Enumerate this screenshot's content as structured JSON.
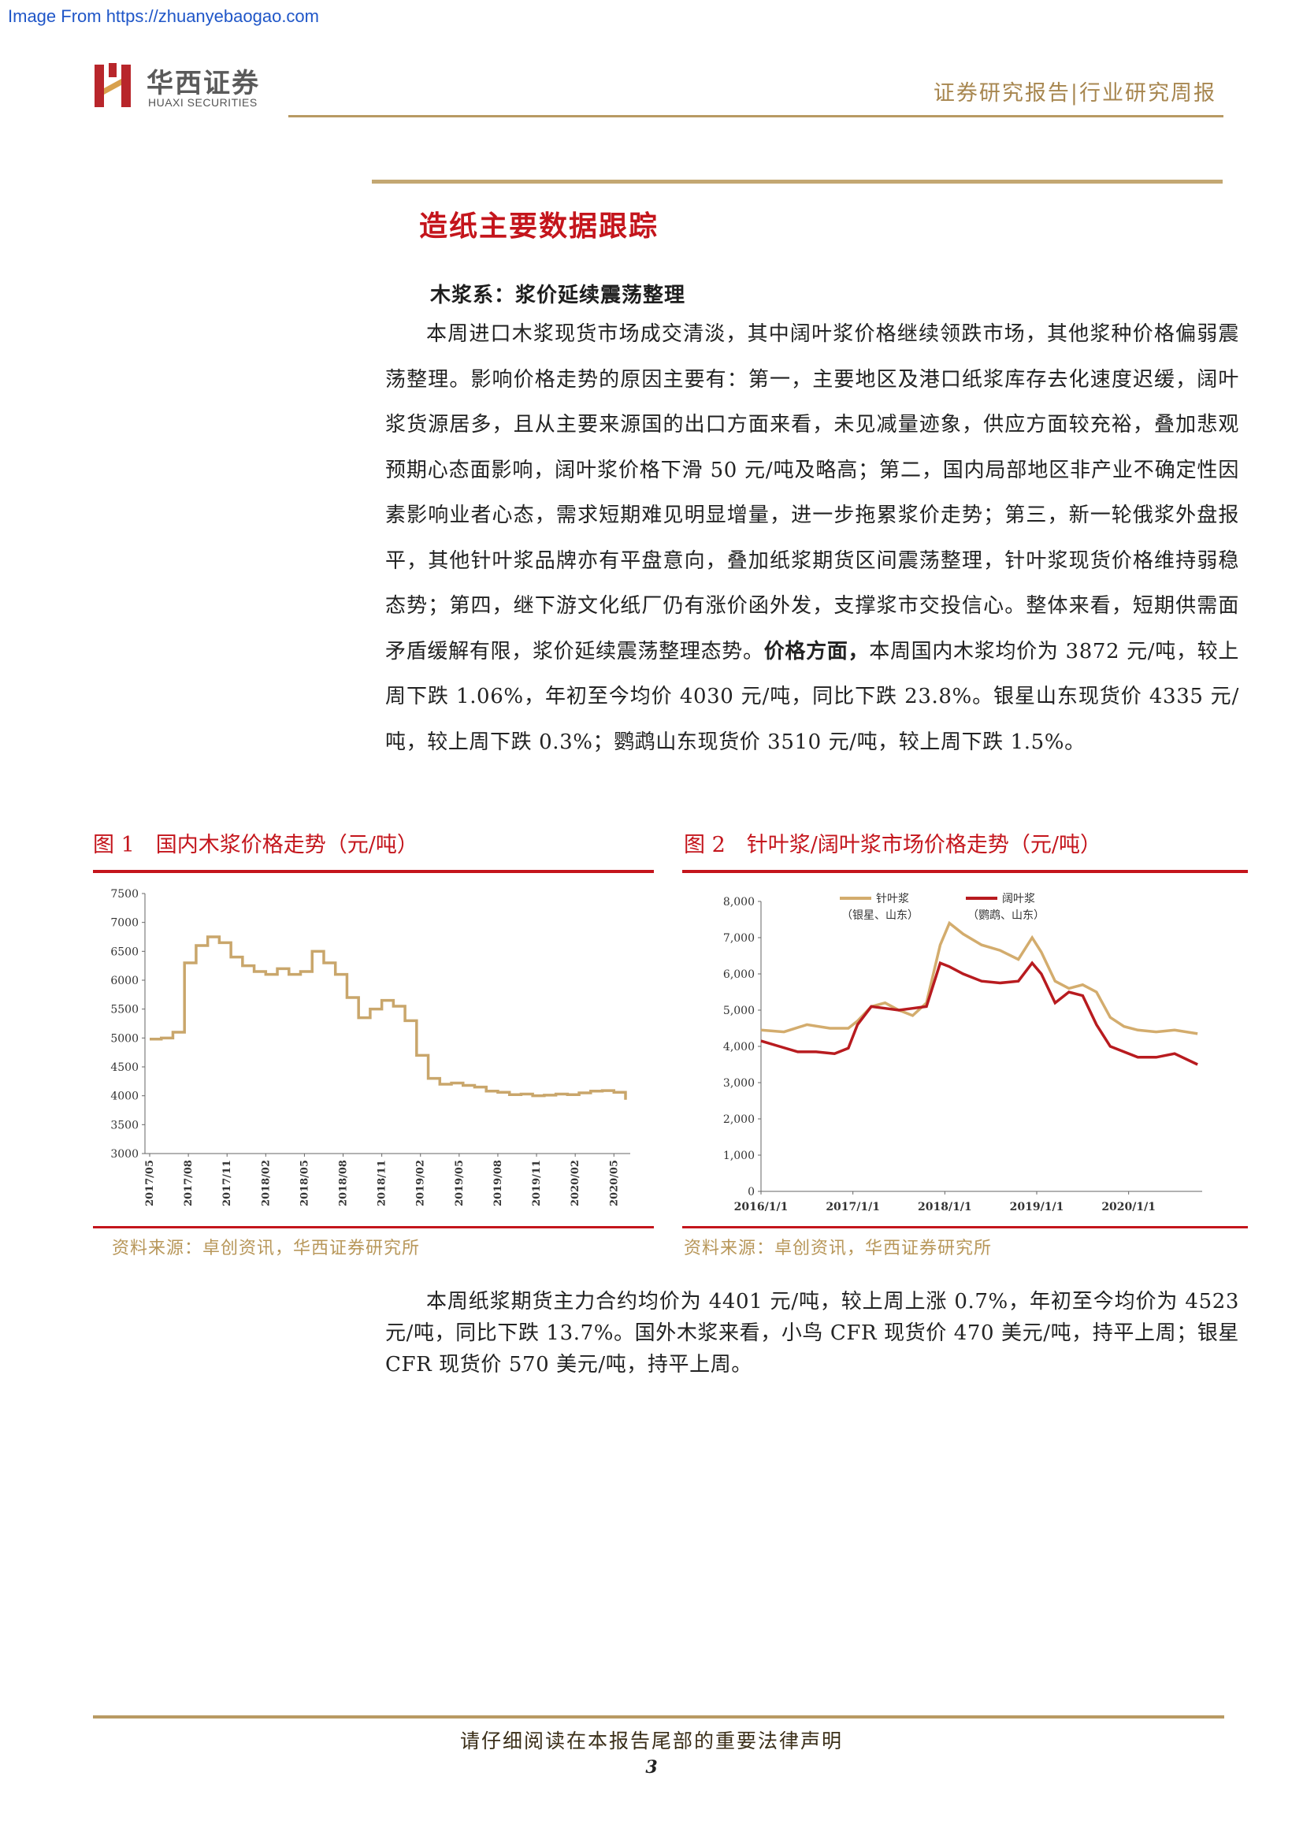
{
  "watermark": "Image From https://zhuanyebaogao.com",
  "header": {
    "logo_cn": "华西证券",
    "logo_en": "HUAXI SECURITIES",
    "report_type": "证券研究报告|行业研究周报"
  },
  "section": {
    "title": "造纸主要数据跟踪",
    "subtitle": "木浆系：浆价延续震荡整理",
    "para1_pre": "本周进口木浆现货市场成交清淡，其中阔叶浆价格继续领跌市场，其他浆种价格偏弱震荡整理。影响价格走势的原因主要有：第一，主要地区及港口纸浆库存去化速度迟缓，阔叶浆货源居多，且从主要来源国的出口方面来看，未见减量迹象，供应方面较充裕，叠加悲观预期心态面影响，阔叶浆价格下滑 50 元/吨及略高；第二，国内局部地区非产业不确定性因素影响业者心态，需求短期难见明显增量，进一步拖累浆价走势；第三，新一轮俄浆外盘报平，其他针叶浆品牌亦有平盘意向，叠加纸浆期货区间震荡整理，针叶浆现货价格维持弱稳态势；第四，继下游文化纸厂仍有涨价函外发，支撑浆市交投信心。整体来看，短期供需面矛盾缓解有限，浆价延续震荡整理态势。",
    "para1_bold": "价格方面，",
    "para1_post": "本周国内木浆均价为 3872 元/吨，较上周下跌 1.06%，年初至今均价 4030 元/吨，同比下跌 23.8%。银星山东现货价 4335 元/吨，较上周下跌 0.3%；鹦鹉山东现货价 3510 元/吨，较上周下跌 1.5%。",
    "para2": "本周纸浆期货主力合约均价为 4401 元/吨，较上周上涨 0.7%，年初至今均价为 4523 元/吨，同比下跌 13.7%。国外木浆来看，小鸟 CFR 现货价 470 美元/吨，持平上周；银星 CFR 现货价 570 美元/吨，持平上周。"
  },
  "figure1": {
    "title": "图 1　国内木浆价格走势（元/吨）",
    "source": "资料来源：卓创资讯，华西证券研究所"
  },
  "figure2": {
    "title": "图 2　针叶浆/阔叶浆市场价格走势（元/吨）",
    "source": "资料来源：卓创资讯，华西证券研究所"
  },
  "footer": {
    "notice": "请仔细阅读在本报告尾部的重要法律声明",
    "page": "3"
  },
  "chart_data": [
    {
      "type": "line",
      "title": "国内木浆价格走势（元/吨）",
      "ylim": [
        3000,
        7500
      ],
      "yticks": [
        "7500",
        "7000",
        "6500",
        "6000",
        "5500",
        "5000",
        "4500",
        "4000",
        "3500",
        "3000"
      ],
      "xticks": [
        "2017/05",
        "2017/08",
        "2017/11",
        "2018/02",
        "2018/05",
        "2018/08",
        "2018/11",
        "2019/02",
        "2019/05",
        "2019/08",
        "2019/11",
        "2020/02",
        "2020/05"
      ],
      "color": "#c9a66b",
      "series": [
        {
          "x": [
            0,
            0.3,
            0.6,
            0.9,
            1.2,
            1.5,
            1.8,
            2.1,
            2.4,
            2.7,
            3.0,
            3.3,
            3.6,
            3.9,
            4.2,
            4.5,
            4.8,
            5.1,
            5.4,
            5.7,
            6.0,
            6.3,
            6.6,
            6.9,
            7.2,
            7.5,
            7.8,
            8.1,
            8.4,
            8.7,
            9.0,
            9.3,
            9.6,
            9.9,
            10.2,
            10.5,
            10.8,
            11.1,
            11.4,
            11.7,
            12.0,
            12.3
          ],
          "values": [
            4980,
            5000,
            5100,
            6300,
            6600,
            6750,
            6650,
            6400,
            6250,
            6150,
            6100,
            6200,
            6100,
            6150,
            6500,
            6300,
            6100,
            5700,
            5350,
            5500,
            5650,
            5550,
            5300,
            4700,
            4300,
            4200,
            4220,
            4180,
            4150,
            4080,
            4060,
            4020,
            4030,
            4000,
            4010,
            4030,
            4020,
            4050,
            4080,
            4090,
            4060,
            3930
          ]
        }
      ]
    },
    {
      "type": "line",
      "title": "针叶浆/阔叶浆市场价格走势（元/吨）",
      "ylim": [
        0,
        8000
      ],
      "yticks": [
        "8,000",
        "7,000",
        "6,000",
        "5,000",
        "4,000",
        "3,000",
        "2,000",
        "1,000",
        "0"
      ],
      "xticks": [
        "2016/1/1",
        "2017/1/1",
        "2018/1/1",
        "2019/1/1",
        "2020/1/1"
      ],
      "series": [
        {
          "name": "针叶浆",
          "sub": "（银星、山东）",
          "color": "#d3ac6d",
          "x": [
            0,
            0.25,
            0.5,
            0.75,
            0.95,
            1.05,
            1.2,
            1.35,
            1.5,
            1.65,
            1.8,
            1.95,
            2.05,
            2.2,
            2.4,
            2.6,
            2.8,
            2.95,
            3.05,
            3.2,
            3.35,
            3.5,
            3.65,
            3.8,
            3.95,
            4.1,
            4.3,
            4.5,
            4.75
          ],
          "values": [
            4450,
            4400,
            4600,
            4500,
            4500,
            4700,
            5100,
            5200,
            5000,
            4850,
            5200,
            6800,
            7400,
            7100,
            6800,
            6650,
            6400,
            7000,
            6600,
            5800,
            5600,
            5700,
            5500,
            4800,
            4550,
            4450,
            4400,
            4450,
            4350
          ]
        },
        {
          "name": "阔叶浆",
          "sub": "（鹦鹉、山东）",
          "color": "#b81b1f",
          "x": [
            0,
            0.2,
            0.4,
            0.6,
            0.8,
            0.95,
            1.05,
            1.2,
            1.35,
            1.5,
            1.65,
            1.8,
            1.95,
            2.05,
            2.2,
            2.4,
            2.6,
            2.8,
            2.95,
            3.05,
            3.2,
            3.35,
            3.5,
            3.65,
            3.8,
            3.95,
            4.1,
            4.3,
            4.5,
            4.75
          ],
          "values": [
            4150,
            4000,
            3850,
            3850,
            3800,
            3950,
            4600,
            5100,
            5050,
            5000,
            5050,
            5100,
            6300,
            6200,
            6000,
            5800,
            5750,
            5800,
            6300,
            6000,
            5200,
            5500,
            5400,
            4600,
            4000,
            3850,
            3700,
            3700,
            3800,
            3500
          ]
        }
      ]
    }
  ]
}
